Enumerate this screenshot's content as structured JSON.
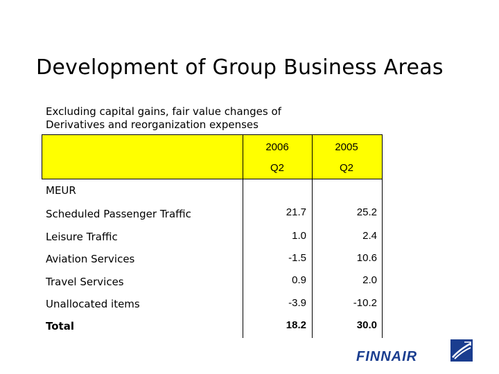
{
  "slide": {
    "title": "Development of Group Business Areas",
    "subtitle_line1": "Excluding capital gains, fair value changes of",
    "subtitle_line2": "Derivatives and reorganization expenses"
  },
  "table": {
    "col_headers": [
      {
        "year": "2006",
        "quarter": "Q2"
      },
      {
        "year": "2005",
        "quarter": "Q2"
      }
    ],
    "unit_label": "MEUR",
    "rows": [
      {
        "label": "Scheduled Passenger Traffic",
        "v2006": "21.7",
        "v2005": "25.2"
      },
      {
        "label": "Leisure Traffic",
        "v2006": "1.0",
        "v2005": "2.4"
      },
      {
        "label": "Aviation Services",
        "v2006": "-1.5",
        "v2005": "10.6"
      },
      {
        "label": "Travel Services",
        "v2006": "0.9",
        "v2005": "2.0"
      },
      {
        "label": "Unallocated items",
        "v2006": "-3.9",
        "v2005": "-10.2"
      },
      {
        "label": "Total",
        "v2006": "18.2",
        "v2005": "30.0"
      }
    ]
  },
  "logo": {
    "text": "FINNAIR"
  },
  "colors": {
    "header_band": "#ffff00",
    "logo_blue": "#1a3d8f"
  }
}
